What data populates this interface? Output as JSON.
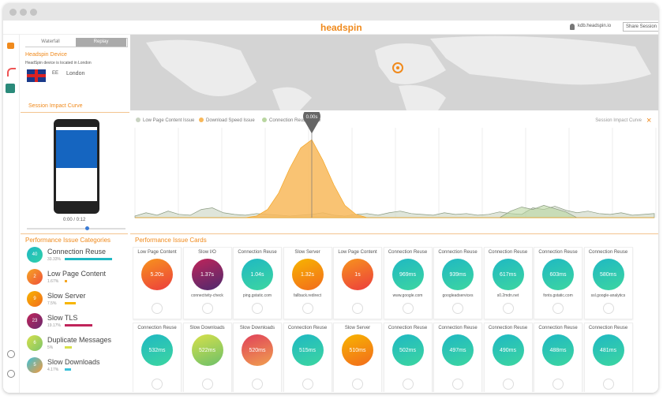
{
  "header": {
    "brand": "headspin",
    "user": "kdb.headspin.io",
    "button": "Share Session"
  },
  "tabs": [
    "Waterfall",
    "Replay"
  ],
  "device": {
    "title": "Headspin Device",
    "desc": "HeadSpin device is located in London",
    "carrier": "EE",
    "city": "London"
  },
  "impact_title": "Session Impact Curve",
  "player": {
    "time": "0:00 / 0:12"
  },
  "chart_data": {
    "type": "area",
    "pin": "0.00s",
    "close_label": "Session Impact Curve",
    "ylim": [
      0,
      100
    ],
    "series": [
      {
        "name": "Low Page Content Issue",
        "color": "#c9d3c2",
        "values": [
          2,
          6,
          3,
          8,
          4,
          3,
          10,
          12,
          6,
          4,
          3,
          5,
          4,
          3,
          2,
          3,
          4,
          6,
          3,
          2,
          4,
          5,
          3,
          6,
          8,
          5,
          4,
          3,
          6,
          4,
          5,
          3,
          4,
          7,
          5,
          4,
          12,
          10,
          14,
          9,
          6,
          8,
          5,
          4,
          6,
          3,
          4,
          5
        ]
      },
      {
        "name": "Download Speed Issue",
        "color": "#f8b85a",
        "values": [
          0,
          0,
          0,
          0,
          0,
          0,
          0,
          0,
          0,
          0,
          0,
          2,
          10,
          30,
          60,
          85,
          95,
          70,
          40,
          15,
          4,
          0,
          0,
          0,
          0,
          0,
          0,
          0,
          0,
          0,
          0,
          0,
          0,
          0,
          0,
          0,
          0,
          0,
          0,
          0,
          0,
          0,
          0,
          0,
          0,
          0,
          0,
          0
        ]
      },
      {
        "name": "Connection Reuse Issue",
        "color": "#b9d6a0",
        "values": [
          0,
          0,
          0,
          0,
          0,
          0,
          0,
          0,
          0,
          0,
          0,
          0,
          0,
          0,
          0,
          0,
          0,
          0,
          0,
          0,
          0,
          0,
          0,
          0,
          0,
          0,
          0,
          0,
          0,
          0,
          0,
          0,
          0,
          0,
          8,
          13,
          10,
          15,
          11,
          7,
          0,
          0,
          0,
          0,
          0,
          0,
          0,
          0
        ]
      }
    ]
  },
  "categories_title": "Performance Issue Categories",
  "categories": [
    {
      "name": "Connection Reuse",
      "count": 40,
      "share": 33.33,
      "share_label": "33.33%",
      "c1": "#1fb8c3",
      "c2": "#2fd0a8"
    },
    {
      "name": "Low Page Content",
      "count": 2,
      "share": 1.67,
      "share_label": "1.67%",
      "c1": "#f5a623",
      "c2": "#f0503a"
    },
    {
      "name": "Slow Server",
      "count": 9,
      "share": 7.5,
      "share_label": "7.5%",
      "c1": "#f7b500",
      "c2": "#f26b1d"
    },
    {
      "name": "Slow TLS",
      "count": 23,
      "share": 19.17,
      "share_label": "19.17%",
      "c1": "#c0245a",
      "c2": "#6a2a6e"
    },
    {
      "name": "Duplicate Messages",
      "count": 6,
      "share": 5,
      "share_label": "5%",
      "c1": "#d7e04a",
      "c2": "#7cc56a"
    },
    {
      "name": "Slow Downloads",
      "count": 5,
      "share": 4.17,
      "share_label": "4.17%",
      "c1": "#3ac0d9",
      "c2": "#f39a3c"
    }
  ],
  "cards_title": "Performance Issue Cards",
  "cards": [
    {
      "title": "Low Page Content",
      "value": "5.20s",
      "note": "",
      "c1": "#f7941d",
      "c2": "#ec3d3d"
    },
    {
      "title": "Slow I/O",
      "value": "1.37s",
      "note": "connectivity-check",
      "c1": "#c0245a",
      "c2": "#4d2a6e"
    },
    {
      "title": "Connection Reuse",
      "value": "1.04s",
      "note": "ping.gstatic.com",
      "c1": "#1fb8c3",
      "c2": "#3dd6a0"
    },
    {
      "title": "Slow Server",
      "value": "1.32s",
      "note": "fallback.redirect",
      "c1": "#f7b500",
      "c2": "#f26b1d"
    },
    {
      "title": "Low Page Content",
      "value": "1s",
      "note": "",
      "c1": "#f7941d",
      "c2": "#ec3d3d"
    },
    {
      "title": "Connection Reuse",
      "value": "969ms",
      "note": "www.google.com",
      "c1": "#1fb8c3",
      "c2": "#3dd6a0"
    },
    {
      "title": "Connection Reuse",
      "value": "939ms",
      "note": "googleadservices",
      "c1": "#1fb8c3",
      "c2": "#3dd6a0"
    },
    {
      "title": "Connection Reuse",
      "value": "617ms",
      "note": "s0.2mdn.net",
      "c1": "#1fb8c3",
      "c2": "#3dd6a0"
    },
    {
      "title": "Connection Reuse",
      "value": "603ms",
      "note": "fonts.gstatic.com",
      "c1": "#1fb8c3",
      "c2": "#3dd6a0"
    },
    {
      "title": "Connection Reuse",
      "value": "580ms",
      "note": "ssl.google-analytics",
      "c1": "#1fb8c3",
      "c2": "#3dd6a0"
    },
    {
      "title": "Connection Reuse",
      "value": "532ms",
      "note": "",
      "c1": "#1fb8c3",
      "c2": "#3dd6a0"
    },
    {
      "title": "Slow Downloads",
      "value": "522ms",
      "note": "",
      "c1": "#d7e04a",
      "c2": "#6cc06a"
    },
    {
      "title": "Slow Downloads",
      "value": "520ms",
      "note": "",
      "c1": "#e0405a",
      "c2": "#f0a050"
    },
    {
      "title": "Connection Reuse",
      "value": "515ms",
      "note": "",
      "c1": "#1fb8c3",
      "c2": "#3dd6a0"
    },
    {
      "title": "Slow Server",
      "value": "510ms",
      "note": "",
      "c1": "#f7b500",
      "c2": "#f26b1d"
    },
    {
      "title": "Connection Reuse",
      "value": "502ms",
      "note": "",
      "c1": "#1fb8c3",
      "c2": "#3dd6a0"
    },
    {
      "title": "Connection Reuse",
      "value": "497ms",
      "note": "",
      "c1": "#1fb8c3",
      "c2": "#3dd6a0"
    },
    {
      "title": "Connection Reuse",
      "value": "490ms",
      "note": "",
      "c1": "#1fb8c3",
      "c2": "#3dd6a0"
    },
    {
      "title": "Connection Reuse",
      "value": "488ms",
      "note": "",
      "c1": "#1fb8c3",
      "c2": "#3dd6a0"
    },
    {
      "title": "Connection Reuse",
      "value": "481ms",
      "note": "",
      "c1": "#1fb8c3",
      "c2": "#3dd6a0"
    }
  ]
}
